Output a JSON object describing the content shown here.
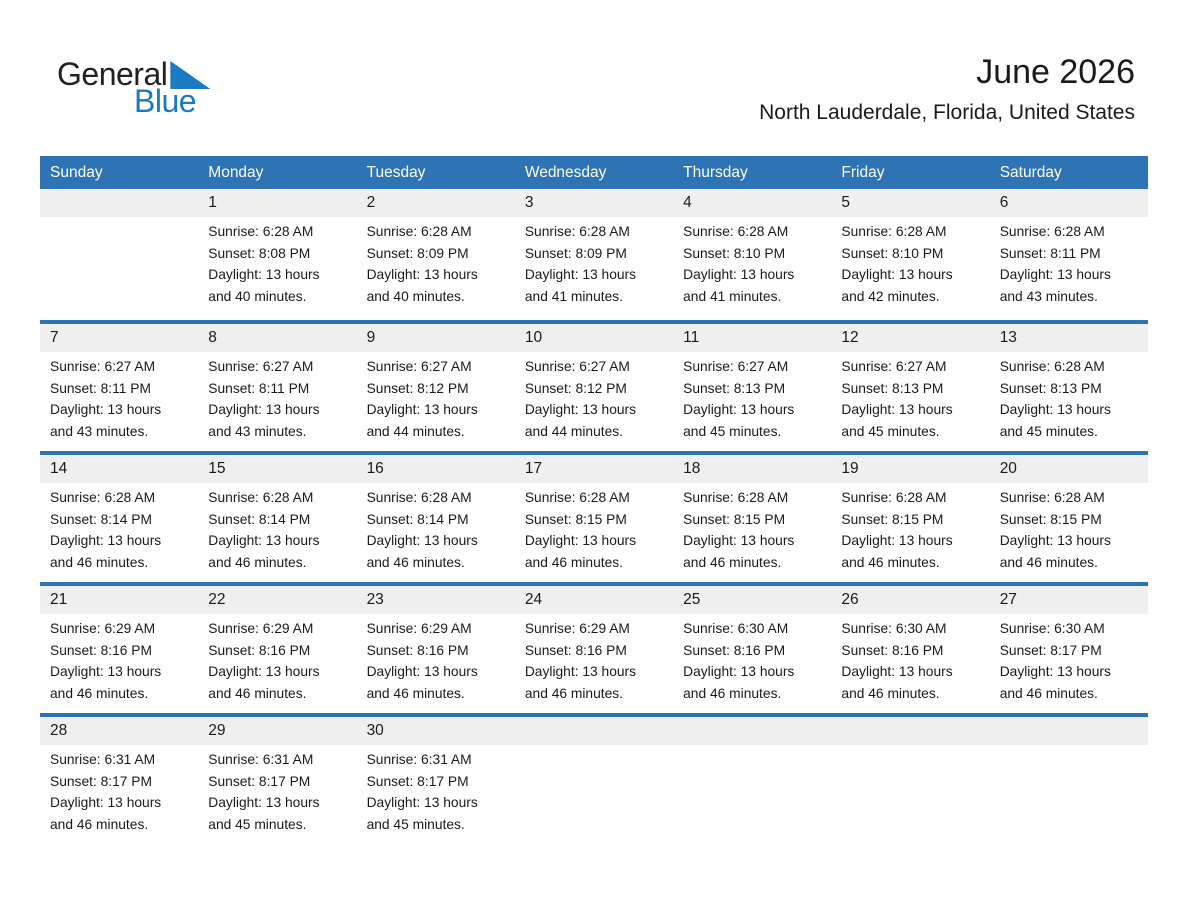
{
  "logo": {
    "general": "General",
    "blue": "Blue"
  },
  "header": {
    "title": "June 2026",
    "subtitle": "North Lauderdale, Florida, United States"
  },
  "colors": {
    "header_blue": "#2e74b5",
    "row_border_blue": "#2e74b5",
    "number_strip_gray": "#efefef",
    "logo_blue": "#1b7ac1",
    "text": "#1a1a1a"
  },
  "weekdays": [
    "Sunday",
    "Monday",
    "Tuesday",
    "Wednesday",
    "Thursday",
    "Friday",
    "Saturday"
  ],
  "weeks": [
    {
      "cells": [
        null,
        {
          "day": "1",
          "sunrise": "Sunrise: 6:28 AM",
          "sunset": "Sunset: 8:08 PM",
          "daylight": "Daylight: 13 hours and 40 minutes."
        },
        {
          "day": "2",
          "sunrise": "Sunrise: 6:28 AM",
          "sunset": "Sunset: 8:09 PM",
          "daylight": "Daylight: 13 hours and 40 minutes."
        },
        {
          "day": "3",
          "sunrise": "Sunrise: 6:28 AM",
          "sunset": "Sunset: 8:09 PM",
          "daylight": "Daylight: 13 hours and 41 minutes."
        },
        {
          "day": "4",
          "sunrise": "Sunrise: 6:28 AM",
          "sunset": "Sunset: 8:10 PM",
          "daylight": "Daylight: 13 hours and 41 minutes."
        },
        {
          "day": "5",
          "sunrise": "Sunrise: 6:28 AM",
          "sunset": "Sunset: 8:10 PM",
          "daylight": "Daylight: 13 hours and 42 minutes."
        },
        {
          "day": "6",
          "sunrise": "Sunrise: 6:28 AM",
          "sunset": "Sunset: 8:11 PM",
          "daylight": "Daylight: 13 hours and 43 minutes."
        }
      ]
    },
    {
      "cells": [
        {
          "day": "7",
          "sunrise": "Sunrise: 6:27 AM",
          "sunset": "Sunset: 8:11 PM",
          "daylight": "Daylight: 13 hours and 43 minutes."
        },
        {
          "day": "8",
          "sunrise": "Sunrise: 6:27 AM",
          "sunset": "Sunset: 8:11 PM",
          "daylight": "Daylight: 13 hours and 43 minutes."
        },
        {
          "day": "9",
          "sunrise": "Sunrise: 6:27 AM",
          "sunset": "Sunset: 8:12 PM",
          "daylight": "Daylight: 13 hours and 44 minutes."
        },
        {
          "day": "10",
          "sunrise": "Sunrise: 6:27 AM",
          "sunset": "Sunset: 8:12 PM",
          "daylight": "Daylight: 13 hours and 44 minutes."
        },
        {
          "day": "11",
          "sunrise": "Sunrise: 6:27 AM",
          "sunset": "Sunset: 8:13 PM",
          "daylight": "Daylight: 13 hours and 45 minutes."
        },
        {
          "day": "12",
          "sunrise": "Sunrise: 6:27 AM",
          "sunset": "Sunset: 8:13 PM",
          "daylight": "Daylight: 13 hours and 45 minutes."
        },
        {
          "day": "13",
          "sunrise": "Sunrise: 6:28 AM",
          "sunset": "Sunset: 8:13 PM",
          "daylight": "Daylight: 13 hours and 45 minutes."
        }
      ]
    },
    {
      "cells": [
        {
          "day": "14",
          "sunrise": "Sunrise: 6:28 AM",
          "sunset": "Sunset: 8:14 PM",
          "daylight": "Daylight: 13 hours and 46 minutes."
        },
        {
          "day": "15",
          "sunrise": "Sunrise: 6:28 AM",
          "sunset": "Sunset: 8:14 PM",
          "daylight": "Daylight: 13 hours and 46 minutes."
        },
        {
          "day": "16",
          "sunrise": "Sunrise: 6:28 AM",
          "sunset": "Sunset: 8:14 PM",
          "daylight": "Daylight: 13 hours and 46 minutes."
        },
        {
          "day": "17",
          "sunrise": "Sunrise: 6:28 AM",
          "sunset": "Sunset: 8:15 PM",
          "daylight": "Daylight: 13 hours and 46 minutes."
        },
        {
          "day": "18",
          "sunrise": "Sunrise: 6:28 AM",
          "sunset": "Sunset: 8:15 PM",
          "daylight": "Daylight: 13 hours and 46 minutes."
        },
        {
          "day": "19",
          "sunrise": "Sunrise: 6:28 AM",
          "sunset": "Sunset: 8:15 PM",
          "daylight": "Daylight: 13 hours and 46 minutes."
        },
        {
          "day": "20",
          "sunrise": "Sunrise: 6:28 AM",
          "sunset": "Sunset: 8:15 PM",
          "daylight": "Daylight: 13 hours and 46 minutes."
        }
      ]
    },
    {
      "cells": [
        {
          "day": "21",
          "sunrise": "Sunrise: 6:29 AM",
          "sunset": "Sunset: 8:16 PM",
          "daylight": "Daylight: 13 hours and 46 minutes."
        },
        {
          "day": "22",
          "sunrise": "Sunrise: 6:29 AM",
          "sunset": "Sunset: 8:16 PM",
          "daylight": "Daylight: 13 hours and 46 minutes."
        },
        {
          "day": "23",
          "sunrise": "Sunrise: 6:29 AM",
          "sunset": "Sunset: 8:16 PM",
          "daylight": "Daylight: 13 hours and 46 minutes."
        },
        {
          "day": "24",
          "sunrise": "Sunrise: 6:29 AM",
          "sunset": "Sunset: 8:16 PM",
          "daylight": "Daylight: 13 hours and 46 minutes."
        },
        {
          "day": "25",
          "sunrise": "Sunrise: 6:30 AM",
          "sunset": "Sunset: 8:16 PM",
          "daylight": "Daylight: 13 hours and 46 minutes."
        },
        {
          "day": "26",
          "sunrise": "Sunrise: 6:30 AM",
          "sunset": "Sunset: 8:16 PM",
          "daylight": "Daylight: 13 hours and 46 minutes."
        },
        {
          "day": "27",
          "sunrise": "Sunrise: 6:30 AM",
          "sunset": "Sunset: 8:17 PM",
          "daylight": "Daylight: 13 hours and 46 minutes."
        }
      ]
    },
    {
      "cells": [
        {
          "day": "28",
          "sunrise": "Sunrise: 6:31 AM",
          "sunset": "Sunset: 8:17 PM",
          "daylight": "Daylight: 13 hours and 46 minutes."
        },
        {
          "day": "29",
          "sunrise": "Sunrise: 6:31 AM",
          "sunset": "Sunset: 8:17 PM",
          "daylight": "Daylight: 13 hours and 45 minutes."
        },
        {
          "day": "30",
          "sunrise": "Sunrise: 6:31 AM",
          "sunset": "Sunset: 8:17 PM",
          "daylight": "Daylight: 13 hours and 45 minutes."
        },
        null,
        null,
        null,
        null
      ]
    }
  ]
}
